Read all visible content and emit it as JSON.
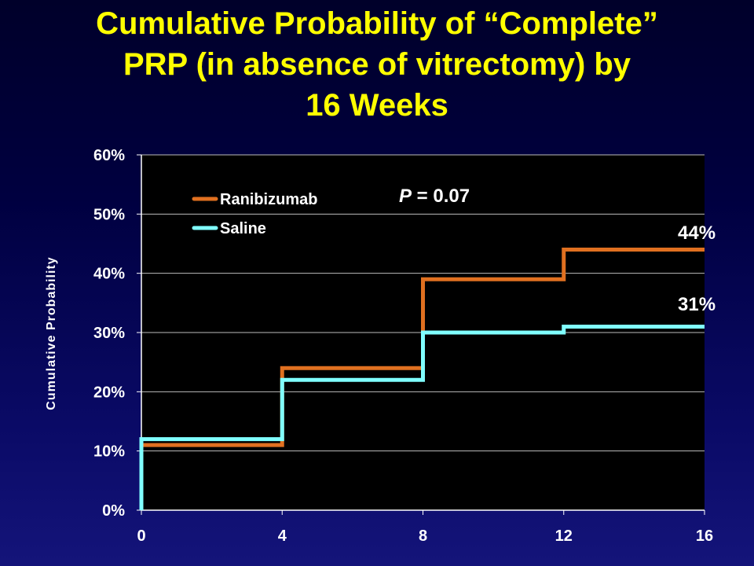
{
  "title_lines": [
    "Cumulative Probability of “Complete”",
    "PRP (in absence of vitrectomy) by",
    "16 Weeks"
  ],
  "colors": {
    "title": "#ffff00",
    "plot_background": "#000000",
    "text": "#ffffff",
    "gridline": "#bbbbbb",
    "ranibizumab": "#e07020",
    "saline": "#80ffff"
  },
  "chart_data": {
    "type": "line",
    "step": true,
    "title": "Cumulative Probability of “Complete” PRP (in absence of vitrectomy) by 16 Weeks",
    "xlabel": "",
    "ylabel": "Cumulative Probability",
    "x_ticks": [
      "0",
      "4",
      "8",
      "12",
      "16"
    ],
    "y_ticks": [
      "0%",
      "10%",
      "20%",
      "30%",
      "40%",
      "50%",
      "60%"
    ],
    "xlim": [
      0,
      16
    ],
    "ylim": [
      0,
      60
    ],
    "grid": "horizontal",
    "legend_position": "top-left",
    "annotation": {
      "prefix": "P",
      "text": " = 0.07"
    },
    "series": [
      {
        "name": "Ranibizumab",
        "color": "#e07020",
        "points": [
          [
            0,
            0
          ],
          [
            0,
            11
          ],
          [
            4,
            11
          ],
          [
            4,
            24
          ],
          [
            8,
            24
          ],
          [
            8,
            39
          ],
          [
            12,
            39
          ],
          [
            12,
            44
          ],
          [
            16,
            44
          ]
        ],
        "end_label": "44%"
      },
      {
        "name": "Saline",
        "color": "#80ffff",
        "points": [
          [
            0,
            0
          ],
          [
            0,
            12
          ],
          [
            4,
            12
          ],
          [
            4,
            22
          ],
          [
            8,
            22
          ],
          [
            8,
            30
          ],
          [
            12,
            30
          ],
          [
            12,
            31
          ],
          [
            16,
            31
          ]
        ],
        "end_label": "31%"
      }
    ]
  }
}
